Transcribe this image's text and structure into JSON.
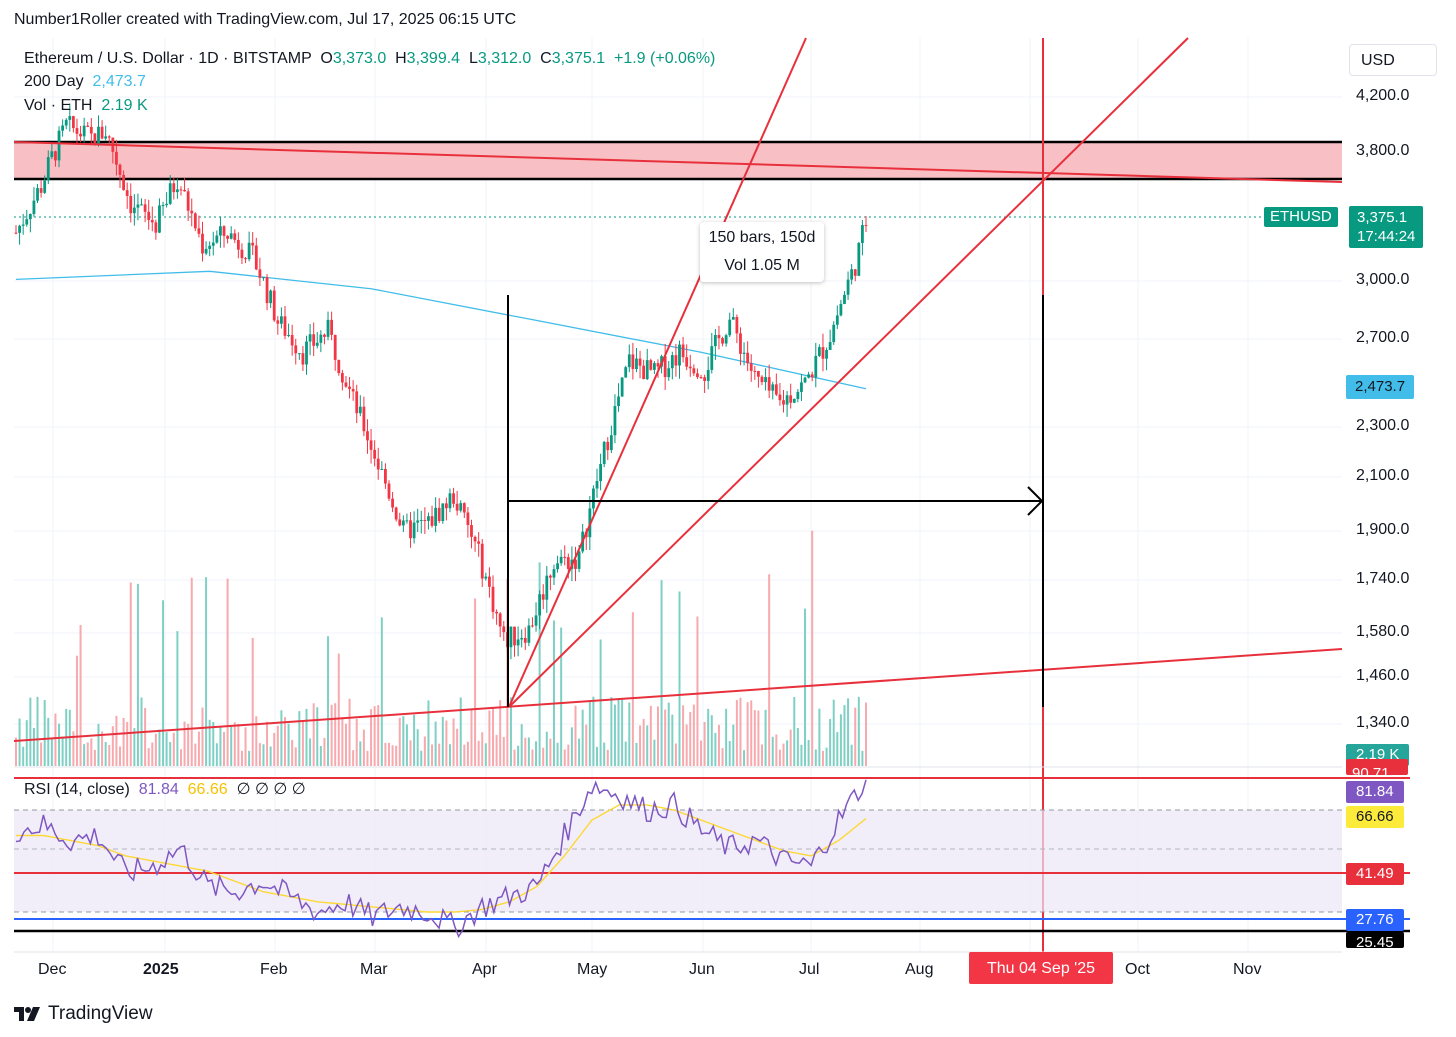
{
  "credit": "Number1Roller created with TradingView.com, Jul 17, 2025 06:15 UTC",
  "legend": {
    "symbol": "Ethereum / U.S. Dollar · 1D · BITSTAMP",
    "o_label": "O",
    "o_val": "3,373.0",
    "h_label": "H",
    "h_val": "3,399.4",
    "l_label": "L",
    "l_val": "3,312.0",
    "c_label": "C",
    "c_val": "3,375.1",
    "change": "+1.9 (+0.06%)",
    "ma_label": "200 Day",
    "ma_val": "2,473.7",
    "vol_label": "Vol · ETH",
    "vol_val": "2.19 K"
  },
  "currency": "USD",
  "price_tags": {
    "symbol": "ETHUSD",
    "price": "3,375.1",
    "countdown": "17:44:24",
    "ma": "2,473.7",
    "volume": "2.19 K"
  },
  "measure_box": {
    "bars": "150 bars, 150d",
    "vol": "Vol 1.05 M"
  },
  "rsi": {
    "label": "RSI (14, close)",
    "value": "81.84",
    "ma_value": "66.66",
    "extras": "∅ ∅ ∅ ∅",
    "tags": [
      "81.84",
      "66.66",
      "41.49",
      "27.76",
      "25.45"
    ],
    "top_line_label": "90.71"
  },
  "date_badge": "Thu 04 Sep '25",
  "footer_brand": "TradingView",
  "colors": {
    "up": "#089981",
    "down": "#f23645",
    "ma": "#42bde9",
    "rsi": "#7e57c2",
    "rsi_ma": "#fdd835"
  },
  "chart_data": {
    "type": "candlestick",
    "title": "Ethereum / U.S. Dollar · 1D · BITSTAMP",
    "ylim": [
      1240,
      4450
    ],
    "y_ticks": [
      "4,200.0",
      "3,800.0",
      "3,000.0",
      "2,700.0",
      "2,300.0",
      "2,100.0",
      "1,900.0",
      "1,740.0",
      "1,580.0",
      "1,460.0",
      "1,340.0"
    ],
    "x_ticks": [
      "Dec",
      "2025",
      "Feb",
      "Mar",
      "Apr",
      "May",
      "Jun",
      "Jul",
      "Aug",
      "Oct",
      "Nov"
    ],
    "close_path": [
      {
        "date": "2024-11-22",
        "close": 3300
      },
      {
        "date": "2024-11-29",
        "close": 3590
      },
      {
        "date": "2024-12-06",
        "close": 3990
      },
      {
        "date": "2024-12-13",
        "close": 3900
      },
      {
        "date": "2024-12-17",
        "close": 3950
      },
      {
        "date": "2024-12-24",
        "close": 3480
      },
      {
        "date": "2024-12-31",
        "close": 3350
      },
      {
        "date": "2025-01-06",
        "close": 3640
      },
      {
        "date": "2025-01-13",
        "close": 3220
      },
      {
        "date": "2025-01-20",
        "close": 3300
      },
      {
        "date": "2025-01-27",
        "close": 3150
      },
      {
        "date": "2025-02-03",
        "close": 2790
      },
      {
        "date": "2025-02-10",
        "close": 2640
      },
      {
        "date": "2025-02-17",
        "close": 2740
      },
      {
        "date": "2025-02-24",
        "close": 2420
      },
      {
        "date": "2025-03-03",
        "close": 2150
      },
      {
        "date": "2025-03-10",
        "close": 1900
      },
      {
        "date": "2025-03-17",
        "close": 1930
      },
      {
        "date": "2025-03-24",
        "close": 2030
      },
      {
        "date": "2025-03-31",
        "close": 1820
      },
      {
        "date": "2025-04-07",
        "close": 1560
      },
      {
        "date": "2025-04-14",
        "close": 1590
      },
      {
        "date": "2025-04-21",
        "close": 1800
      },
      {
        "date": "2025-04-28",
        "close": 1810
      },
      {
        "date": "2025-05-05",
        "close": 2200
      },
      {
        "date": "2025-05-12",
        "close": 2600
      },
      {
        "date": "2025-05-19",
        "close": 2540
      },
      {
        "date": "2025-05-26",
        "close": 2640
      },
      {
        "date": "2025-06-02",
        "close": 2560
      },
      {
        "date": "2025-06-09",
        "close": 2800
      },
      {
        "date": "2025-06-16",
        "close": 2520
      },
      {
        "date": "2025-06-23",
        "close": 2410
      },
      {
        "date": "2025-06-30",
        "close": 2500
      },
      {
        "date": "2025-07-07",
        "close": 2720
      },
      {
        "date": "2025-07-14",
        "close": 3100
      },
      {
        "date": "2025-07-17",
        "close": 3375.1
      }
    ],
    "ma200_path": [
      {
        "date": "2024-11-22",
        "value": 3010
      },
      {
        "date": "2025-01-15",
        "value": 3060
      },
      {
        "date": "2025-03-01",
        "value": 2960
      },
      {
        "date": "2025-04-15",
        "value": 2800
      },
      {
        "date": "2025-06-01",
        "value": 2640
      },
      {
        "date": "2025-07-17",
        "value": 2473.7
      }
    ],
    "resistance_zone": [
      3660,
      3880
    ],
    "rsi_series": {
      "rsi_close_path": [
        62,
        64,
        58,
        60,
        45,
        48,
        55,
        40,
        38,
        42,
        36,
        30,
        34,
        28,
        32,
        30,
        24,
        32,
        36,
        40,
        60,
        80,
        76,
        70,
        72,
        62,
        55,
        58,
        50,
        48,
        66,
        81.84
      ],
      "rsi_ma_path": [
        60,
        60,
        58,
        56,
        52,
        50,
        48,
        46,
        42,
        38,
        36,
        34,
        33,
        32,
        31,
        30,
        30,
        31,
        34,
        40,
        52,
        66,
        72,
        72,
        70,
        66,
        62,
        58,
        54,
        52,
        58,
        66.66
      ],
      "levels": [
        90.71,
        41.49,
        27.76,
        25.45
      ]
    },
    "volume_latest": "2.19 K"
  }
}
